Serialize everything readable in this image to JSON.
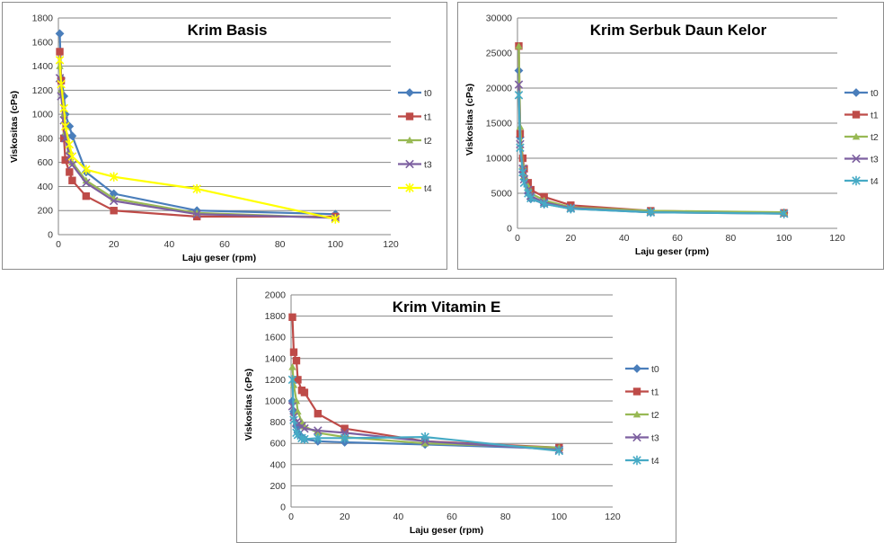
{
  "series_colors": {
    "t0": "#4a7ebb",
    "t1": "#be4b48",
    "t2": "#98b954",
    "t3": "#7d60a0",
    "t4_basis": "#ffff00",
    "t4": "#46aac5"
  },
  "series_markers": {
    "t0": "diamond",
    "t1": "square",
    "t2": "triangle",
    "t3": "x",
    "t4": "asterisk"
  },
  "chart_data": [
    {
      "type": "line",
      "title": "Krim Basis",
      "xlabel": "Laju geser (rpm)",
      "ylabel": "Viskositas (cPs)",
      "xlim": [
        0,
        120
      ],
      "ylim": [
        0,
        1800
      ],
      "xticks": [
        "0",
        "20",
        "40",
        "60",
        "80",
        "100",
        "120"
      ],
      "yticks": [
        "0",
        "200",
        "400",
        "600",
        "800",
        "1000",
        "1200",
        "1400",
        "1600",
        "1800"
      ],
      "grid": "horizontal",
      "legend": "right",
      "x": [
        0.5,
        1,
        2,
        2.5,
        4,
        5,
        10,
        20,
        50,
        100
      ],
      "series": [
        {
          "name": "t0",
          "values": [
            1670,
            1300,
            1150,
            1000,
            900,
            820,
            520,
            340,
            200,
            170
          ]
        },
        {
          "name": "t1",
          "values": [
            1520,
            1280,
            800,
            620,
            520,
            450,
            320,
            200,
            150,
            150
          ]
        },
        {
          "name": "t2",
          "values": [
            1400,
            1200,
            1000,
            850,
            700,
            600,
            450,
            300,
            180,
            140
          ]
        },
        {
          "name": "t3",
          "values": [
            1300,
            1150,
            950,
            800,
            650,
            580,
            430,
            280,
            170,
            140
          ]
        },
        {
          "name": "t4",
          "values": [
            1450,
            1250,
            1050,
            900,
            750,
            650,
            540,
            480,
            380,
            130
          ]
        }
      ]
    },
    {
      "type": "line",
      "title": "Krim Serbuk Daun Kelor",
      "xlabel": "Laju geser (rpm)",
      "ylabel": "Viskositas (cPs)",
      "xlim": [
        0,
        120
      ],
      "ylim": [
        0,
        30000
      ],
      "xticks": [
        "0",
        "20",
        "40",
        "60",
        "80",
        "100",
        "120"
      ],
      "yticks": [
        "0",
        "5000",
        "10000",
        "15000",
        "20000",
        "25000",
        "30000"
      ],
      "grid": "horizontal",
      "legend": "right",
      "x": [
        0.5,
        1,
        2,
        2.5,
        4,
        5,
        10,
        20,
        50,
        100
      ],
      "series": [
        {
          "name": "t0",
          "values": [
            22500,
            13000,
            8000,
            7000,
            5000,
            4200,
            3500,
            2800,
            2300,
            2200
          ]
        },
        {
          "name": "t1",
          "values": [
            26000,
            13500,
            10000,
            8500,
            6500,
            5500,
            4500,
            3300,
            2500,
            2200
          ]
        },
        {
          "name": "t2",
          "values": [
            26000,
            14500,
            9000,
            7500,
            6000,
            5000,
            4000,
            3000,
            2500,
            2300
          ]
        },
        {
          "name": "t3",
          "values": [
            20500,
            12000,
            8500,
            7000,
            5500,
            4600,
            3700,
            2900,
            2300,
            2100
          ]
        },
        {
          "name": "t4",
          "values": [
            19000,
            11500,
            8000,
            6500,
            5000,
            4300,
            3500,
            2800,
            2300,
            2100
          ]
        }
      ]
    },
    {
      "type": "line",
      "title": "Krim Vitamin E",
      "xlabel": "Laju geser (rpm)",
      "ylabel": "Viskositas (cPs)",
      "xlim": [
        0,
        120
      ],
      "ylim": [
        0,
        2000
      ],
      "xticks": [
        "0",
        "20",
        "40",
        "60",
        "80",
        "100",
        "120"
      ],
      "yticks": [
        "0",
        "200",
        "400",
        "600",
        "800",
        "1000",
        "1200",
        "1400",
        "1600",
        "1800",
        "2000"
      ],
      "grid": "horizontal",
      "legend": "right",
      "x": [
        0.5,
        1,
        2,
        2.5,
        4,
        5,
        10,
        20,
        50,
        100
      ],
      "series": [
        {
          "name": "t0",
          "values": [
            1000,
            900,
            760,
            700,
            660,
            640,
            620,
            610,
            590,
            550
          ]
        },
        {
          "name": "t1",
          "values": [
            1790,
            1460,
            1380,
            1200,
            1100,
            1080,
            880,
            740,
            620,
            560
          ]
        },
        {
          "name": "t2",
          "values": [
            1320,
            1150,
            1000,
            900,
            800,
            760,
            700,
            660,
            600,
            560
          ]
        },
        {
          "name": "t3",
          "values": [
            950,
            850,
            800,
            780,
            760,
            740,
            720,
            700,
            620,
            540
          ]
        },
        {
          "name": "t4",
          "values": [
            1200,
            820,
            700,
            680,
            650,
            640,
            650,
            650,
            660,
            530
          ]
        }
      ]
    }
  ]
}
